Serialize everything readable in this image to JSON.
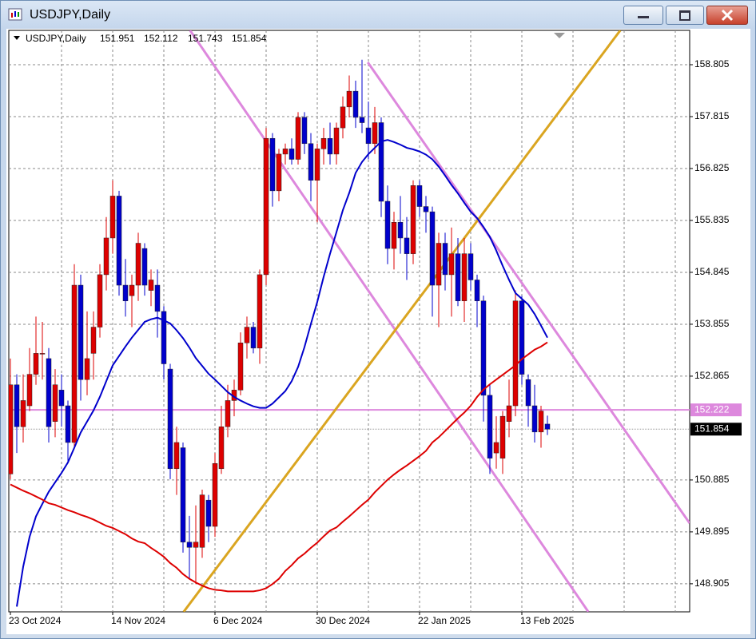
{
  "window_title": "USDJPY,Daily",
  "chart_data": {
    "type": "candlestick",
    "title": "USDJPY,Daily",
    "categories": [
      "23 Oct 2024",
      null,
      null,
      null,
      null,
      null,
      null,
      null,
      null,
      null,
      null,
      null,
      null,
      null,
      null,
      null,
      "14 Nov 2024",
      null,
      null,
      null,
      null,
      null,
      null,
      null,
      null,
      null,
      null,
      null,
      null,
      null,
      null,
      null,
      "6 Dec 2024",
      null,
      null,
      null,
      null,
      null,
      null,
      null,
      null,
      null,
      null,
      null,
      null,
      null,
      null,
      null,
      "30 Dec 2024",
      null,
      null,
      null,
      null,
      null,
      null,
      null,
      null,
      null,
      null,
      null,
      null,
      null,
      null,
      null,
      "22 Jan 2025",
      null,
      null,
      null,
      null,
      null,
      null,
      null,
      null,
      null,
      null,
      null,
      null,
      null,
      null,
      null,
      "13 Feb 2025",
      null,
      null,
      null,
      null
    ],
    "open": [
      151.0,
      152.7,
      151.9,
      152.3,
      152.9,
      153.3,
      153.2,
      152.0,
      152.6,
      152.3,
      151.6,
      154.6,
      152.8,
      153.3,
      153.8,
      154.8,
      155.5,
      156.3,
      154.6,
      154.4,
      154.6,
      155.3,
      154.5,
      154.6,
      154.1,
      153.0,
      151.1,
      151.5,
      149.7,
      149.6,
      149.6,
      150.5,
      150.0,
      151.1,
      151.9,
      152.4,
      152.6,
      153.5,
      153.8,
      153.4,
      154.8,
      157.4,
      156.4,
      157.1,
      157.2,
      157.0,
      157.8,
      157.3,
      156.6,
      157.2,
      157.4,
      157.1,
      157.6,
      158.0,
      158.3,
      157.8,
      157.6,
      157.3,
      157.7,
      156.2,
      155.3,
      155.8,
      155.5,
      155.2,
      156.5,
      156.1,
      156.0,
      154.6,
      155.4,
      154.8,
      155.2,
      154.3,
      155.2,
      154.7,
      154.3,
      152.5,
      151.4,
      151.3,
      152.0,
      152.3,
      154.3,
      152.8,
      152.3,
      151.8,
      151.951
    ],
    "high": [
      153.2,
      152.9,
      152.9,
      153.4,
      154.0,
      153.9,
      153.4,
      153.0,
      152.9,
      152.4,
      155.0,
      154.8,
      154.1,
      154.1,
      155.0,
      155.9,
      156.6,
      156.4,
      155.1,
      154.8,
      155.6,
      155.4,
      154.9,
      154.9,
      154.2,
      153.1,
      151.9,
      151.6,
      150.2,
      150.4,
      150.7,
      150.6,
      151.4,
      152.3,
      152.7,
      152.8,
      153.7,
      154.0,
      153.9,
      154.9,
      157.6,
      157.5,
      157.2,
      157.3,
      157.4,
      157.9,
      157.9,
      157.5,
      157.3,
      157.6,
      157.7,
      157.7,
      158.2,
      158.6,
      158.5,
      158.9,
      158.1,
      158.0,
      157.8,
      156.5,
      156.0,
      156.3,
      155.9,
      156.6,
      156.6,
      156.3,
      156.1,
      155.6,
      155.6,
      155.7,
      155.5,
      155.5,
      155.4,
      154.8,
      154.4,
      152.7,
      152.1,
      152.2,
      152.8,
      154.5,
      154.4,
      152.9,
      152.7,
      152.3,
      152.112
    ],
    "low": [
      150.9,
      151.4,
      151.6,
      152.2,
      152.7,
      152.8,
      151.6,
      151.7,
      151.9,
      151.2,
      151.5,
      152.4,
      152.5,
      152.8,
      153.6,
      154.5,
      155.2,
      154.4,
      154.0,
      153.8,
      154.3,
      154.4,
      154.2,
      153.6,
      152.8,
      150.9,
      150.6,
      149.5,
      149.0,
      148.9,
      149.4,
      149.7,
      149.8,
      151.0,
      151.7,
      152.1,
      152.5,
      153.2,
      153.3,
      153.1,
      154.6,
      156.1,
      156.2,
      156.9,
      156.9,
      156.9,
      157.1,
      156.2,
      155.8,
      156.9,
      156.9,
      156.9,
      157.4,
      157.8,
      157.6,
      157.5,
      157.0,
      157.1,
      155.9,
      155.0,
      154.9,
      155.2,
      154.7,
      155.0,
      155.9,
      155.6,
      154.0,
      153.8,
      154.5,
      154.0,
      154.2,
      153.9,
      154.5,
      153.8,
      152.0,
      151.0,
      151.1,
      151.0,
      151.7,
      152.1,
      152.7,
      151.9,
      151.6,
      151.5,
      151.743
    ],
    "close": [
      152.7,
      151.9,
      152.4,
      152.9,
      153.3,
      153.3,
      151.9,
      152.7,
      152.3,
      151.6,
      154.6,
      152.8,
      153.2,
      153.8,
      154.8,
      155.5,
      156.3,
      154.6,
      154.3,
      154.6,
      155.4,
      154.6,
      154.7,
      154.1,
      153.1,
      151.1,
      151.6,
      149.7,
      149.6,
      149.7,
      150.6,
      150.0,
      151.2,
      151.9,
      152.4,
      152.6,
      153.5,
      153.8,
      153.4,
      154.8,
      157.4,
      156.4,
      157.1,
      157.2,
      157.0,
      157.8,
      157.3,
      156.6,
      157.2,
      157.4,
      157.1,
      157.6,
      158.0,
      158.3,
      157.8,
      157.7,
      157.3,
      157.7,
      156.2,
      155.3,
      155.8,
      155.5,
      155.2,
      156.5,
      156.1,
      156.0,
      154.6,
      155.4,
      154.8,
      155.2,
      154.3,
      155.2,
      154.7,
      154.3,
      152.5,
      151.3,
      151.6,
      152.1,
      152.3,
      154.3,
      152.9,
      152.3,
      151.8,
      152.2,
      151.854
    ],
    "up_color": "#dd0000",
    "down_color": "#0000cc",
    "moving_averages": [
      {
        "color": "#0000cc",
        "values": [
          null,
          148.47,
          149.23,
          149.8,
          150.19,
          150.43,
          150.66,
          150.84,
          151.02,
          151.22,
          151.5,
          151.79,
          152.0,
          152.21,
          152.47,
          152.77,
          153.07,
          153.25,
          153.43,
          153.6,
          153.75,
          153.9,
          153.95,
          153.98,
          153.93,
          153.87,
          153.74,
          153.59,
          153.41,
          153.21,
          153.06,
          152.91,
          152.8,
          152.68,
          152.56,
          152.47,
          152.4,
          152.34,
          152.29,
          152.26,
          152.26,
          152.34,
          152.46,
          152.58,
          152.77,
          153.04,
          153.42,
          153.86,
          154.28,
          154.76,
          155.2,
          155.61,
          156.03,
          156.36,
          156.74,
          156.95,
          157.1,
          157.22,
          157.34,
          157.37,
          157.33,
          157.28,
          157.22,
          157.19,
          157.15,
          157.09,
          157.0,
          156.86,
          156.69,
          156.51,
          156.35,
          156.17,
          156.0,
          155.88,
          155.71,
          155.52,
          155.26,
          154.97,
          154.7,
          154.45,
          154.34,
          154.23,
          154.05,
          153.83,
          153.6
        ]
      },
      {
        "color": "#dd0000",
        "values": [
          150.8,
          150.74,
          150.68,
          150.63,
          150.57,
          150.51,
          150.44,
          150.41,
          150.36,
          150.31,
          150.27,
          150.22,
          150.18,
          150.13,
          150.07,
          150.01,
          149.97,
          149.91,
          149.85,
          149.77,
          149.71,
          149.68,
          149.59,
          149.51,
          149.42,
          149.3,
          149.21,
          149.09,
          149.0,
          148.93,
          148.87,
          148.82,
          148.79,
          148.78,
          148.76,
          148.76,
          148.76,
          148.76,
          148.76,
          148.78,
          148.82,
          148.9,
          149.0,
          149.15,
          149.26,
          149.39,
          149.48,
          149.59,
          149.69,
          149.81,
          149.92,
          149.98,
          150.09,
          150.19,
          150.3,
          150.41,
          150.51,
          150.65,
          150.77,
          150.89,
          150.99,
          151.08,
          151.16,
          151.25,
          151.34,
          151.44,
          151.6,
          151.7,
          151.82,
          151.94,
          152.06,
          152.17,
          152.3,
          152.47,
          152.61,
          152.71,
          152.8,
          152.89,
          152.98,
          153.07,
          153.19,
          153.28,
          153.37,
          153.43,
          153.51
        ]
      }
    ],
    "trendlines": [
      {
        "color": "#dd88dd",
        "x": [
          28.1,
          90.4
        ],
        "y": [
          159.46,
          148.37
        ]
      },
      {
        "color": "#dd88dd",
        "x": [
          55.9,
          106.25
        ],
        "y": [
          158.85,
          150.06
        ]
      },
      {
        "color": "#daa520",
        "x": [
          27.1,
          95.4
        ],
        "y": [
          148.37,
          159.46
        ]
      }
    ],
    "hline": {
      "value": 152.222,
      "color": "#dd88dd"
    },
    "ylim": [
      148.37,
      159.46
    ],
    "yticks": [
      158.805,
      157.815,
      156.825,
      155.835,
      154.845,
      153.855,
      152.865,
      150.885,
      149.895,
      148.905
    ],
    "grid": true
  }
}
